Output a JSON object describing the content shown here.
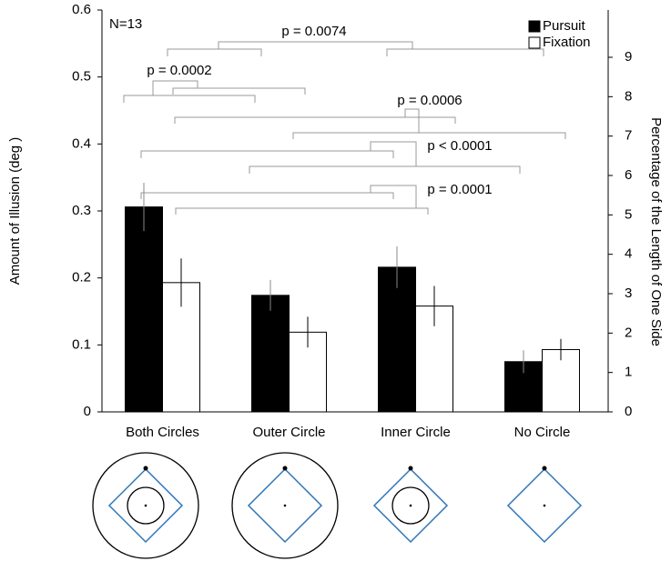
{
  "chart_data": {
    "type": "bar",
    "y_label": "Amount of Illusion (deg )",
    "y2_label": "Percentage of the Length of One Side",
    "categories": [
      "Both Circles",
      "Outer Circle",
      "Inner Circle",
      "No Circle"
    ],
    "series": [
      {
        "name": "Pursuit",
        "color": "#000000",
        "values": [
          0.306,
          0.174,
          0.216,
          0.075
        ],
        "errors": [
          0.036,
          0.023,
          0.031,
          0.017
        ]
      },
      {
        "name": "Fixation",
        "color": "#ffffff",
        "values": [
          0.193,
          0.119,
          0.158,
          0.093
        ],
        "errors": [
          0.036,
          0.023,
          0.03,
          0.016
        ]
      }
    ],
    "ylim": [
      0,
      0.6
    ],
    "yticks": [
      0,
      0.1,
      0.2,
      0.3,
      0.4,
      0.5,
      0.6
    ],
    "y2lim": [
      0,
      10.2
    ],
    "y2ticks": [
      0,
      1,
      2,
      3,
      4,
      5,
      6,
      7,
      8,
      9
    ],
    "legend": "upper right",
    "annotations": [
      "N=13",
      "p = 0.0074",
      "p = 0.0002",
      "p = 0.0006",
      "p < 0.0001",
      "p = 0.0001"
    ]
  }
}
